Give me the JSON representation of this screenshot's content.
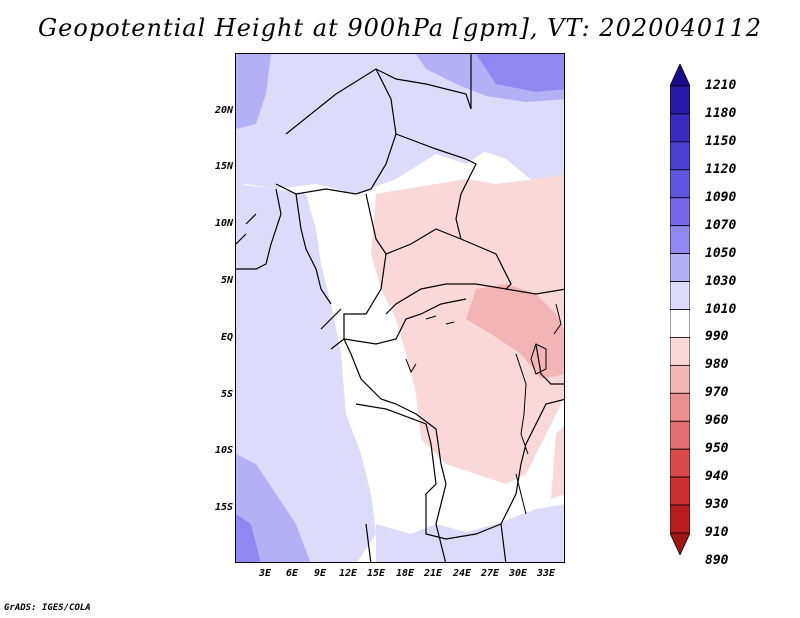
{
  "title": "Geopotential Height at 900hPa [gpm], VT: 2020040112",
  "credit": "GrADS: IGES/COLA",
  "map": {
    "variable": "Geopotential Height",
    "level": "900hPa",
    "units": "gpm",
    "valid_time": "2020040112",
    "latitude_labels": [
      "20N",
      "15N",
      "10N",
      "5N",
      "EQ",
      "5S",
      "10S",
      "15S"
    ],
    "longitude_labels": [
      "3E",
      "6E",
      "9E",
      "12E",
      "15E",
      "18E",
      "21E",
      "24E",
      "27E",
      "30E",
      "33E"
    ]
  },
  "colorbar": {
    "levels": [
      "1210",
      "1180",
      "1150",
      "1120",
      "1090",
      "1070",
      "1050",
      "1030",
      "1010",
      "990",
      "980",
      "970",
      "960",
      "950",
      "940",
      "930",
      "910",
      "890"
    ],
    "colors": [
      "#1a0a8c",
      "#2a1aa8",
      "#3a2cc0",
      "#4a40d4",
      "#5e56e0",
      "#7668e8",
      "#9088f0",
      "#b4b0f6",
      "#dcdcfa",
      "#ffffff",
      "#fad8d8",
      "#f2b4b4",
      "#ea9090",
      "#e06e6e",
      "#d84a4a",
      "#cc3030",
      "#b81e1e",
      "#a01414"
    ]
  }
}
